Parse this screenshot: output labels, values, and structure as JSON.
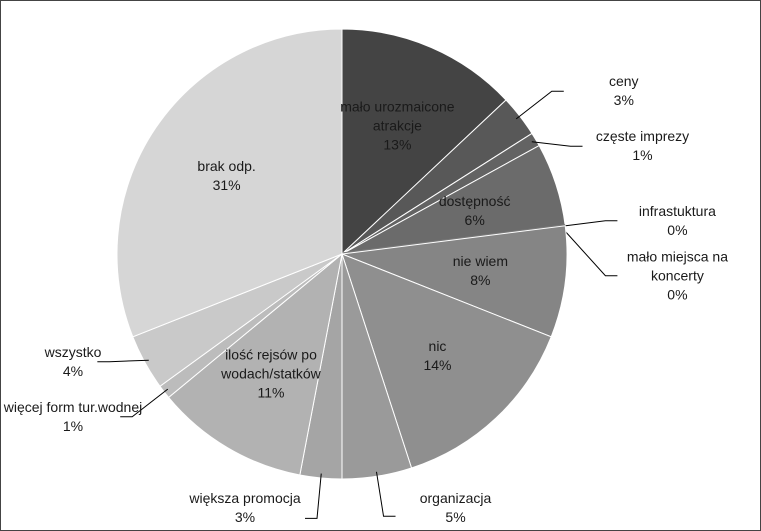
{
  "chart_data": {
    "type": "pie",
    "categories": [
      "mało urozmaicone atrakcje",
      "ceny",
      "częste imprezy",
      "dostępność",
      "infrastuktura",
      "mało miejsca na koncerty",
      "nie wiem",
      "nic",
      "organizacja",
      "większa promocja",
      "ilość rejsów po wodach/statków",
      "więcej form tur.wodnej",
      "wszystko",
      "brak odp."
    ],
    "values": [
      13,
      3,
      1,
      6,
      0,
      0,
      8,
      14,
      5,
      3,
      11,
      1,
      4,
      31
    ],
    "value_labels": [
      "13%",
      "3%",
      "1%",
      "6%",
      "0%",
      "0%",
      "8%",
      "14%",
      "5%",
      "3%",
      "11%",
      "1%",
      "4%",
      "31%"
    ],
    "colors": [
      "#444444",
      "#585858",
      "#636363",
      "#6b6b6b",
      "#747474",
      "#7a7a7a",
      "#858585",
      "#8f8f8f",
      "#9a9a9a",
      "#a5a5a5",
      "#b2b2b2",
      "#bcbcbc",
      "#c9c9c9",
      "#d6d6d6"
    ]
  }
}
